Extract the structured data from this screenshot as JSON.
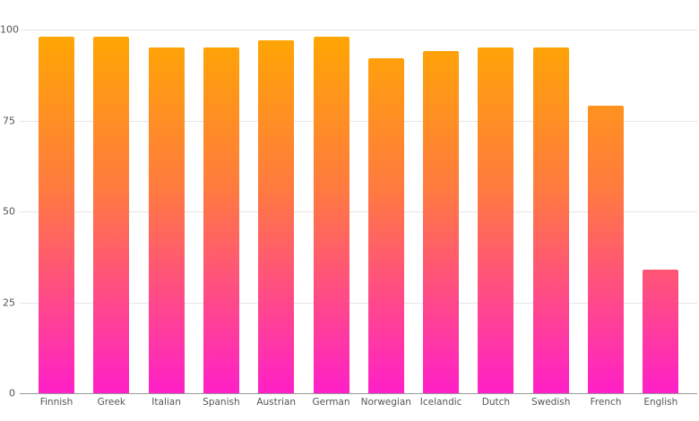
{
  "chart_data": {
    "type": "bar",
    "title": "",
    "xlabel": "",
    "ylabel": "",
    "categories": [
      "Finnish",
      "Greek",
      "Italian",
      "Spanish",
      "Austrian",
      "German",
      "Norwegian",
      "Icelandic",
      "Dutch",
      "Swedish",
      "French",
      "English"
    ],
    "values": [
      98,
      98,
      95,
      95,
      97,
      98,
      92,
      94,
      95,
      95,
      79,
      34
    ],
    "ylim": [
      0,
      100
    ],
    "yticks": [
      0,
      25,
      50,
      75,
      100
    ],
    "grid": true,
    "legend": null,
    "colors": {
      "gradient_top": "#ffa800",
      "gradient_mid": "#ff7a40",
      "gradient_bottom": "#ff20c8",
      "grid": "#e6e6e6",
      "axis": "#999999",
      "text": "#555555"
    }
  },
  "yaxis": {
    "ticks": [
      "0",
      "25",
      "50",
      "75",
      "100"
    ]
  },
  "xaxis": {
    "labels": [
      "Finnish",
      "Greek",
      "Italian",
      "Spanish",
      "Austrian",
      "German",
      "Norwegian",
      "Icelandic",
      "Dutch",
      "Swedish",
      "French",
      "English"
    ]
  }
}
